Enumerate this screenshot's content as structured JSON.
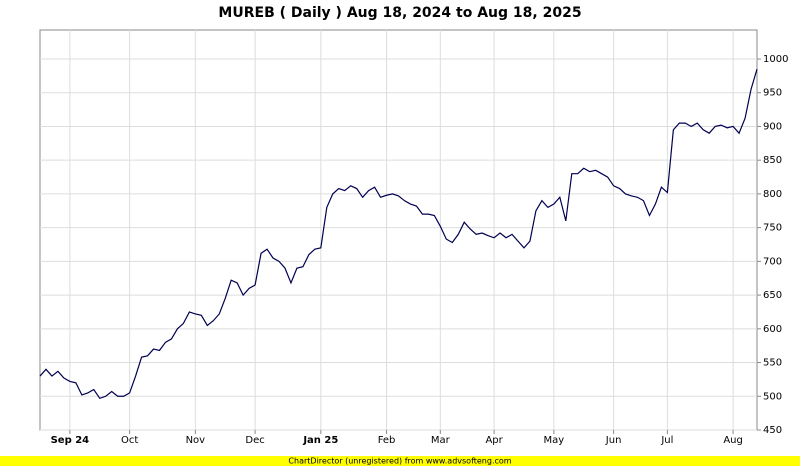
{
  "chart_data": {
    "type": "line",
    "title": "MUREB ( Daily ) Aug 18, 2024 to Aug 18, 2025",
    "footer": "ChartDirector (unregistered) from www.advsofteng.com",
    "color": "#000050",
    "grid": true,
    "ylim": [
      450,
      1043
    ],
    "yticks": [
      450,
      500,
      550,
      600,
      650,
      700,
      750,
      800,
      850,
      900,
      950,
      1000
    ],
    "categories": [
      null,
      null,
      null,
      null,
      null,
      "Sep 24",
      null,
      null,
      null,
      null,
      null,
      null,
      null,
      null,
      null,
      "Oct",
      null,
      null,
      null,
      null,
      null,
      null,
      null,
      null,
      null,
      null,
      "Nov",
      null,
      null,
      null,
      null,
      null,
      null,
      null,
      null,
      null,
      "Dec",
      null,
      null,
      null,
      null,
      null,
      null,
      null,
      null,
      null,
      null,
      "Jan 25",
      null,
      null,
      null,
      null,
      null,
      null,
      null,
      null,
      null,
      null,
      "Feb",
      null,
      null,
      null,
      null,
      null,
      null,
      null,
      null,
      "Mar",
      null,
      null,
      null,
      null,
      null,
      null,
      null,
      null,
      "Apr",
      null,
      null,
      null,
      null,
      null,
      null,
      null,
      null,
      null,
      "May",
      null,
      null,
      null,
      null,
      null,
      null,
      null,
      null,
      null,
      "Jun",
      null,
      null,
      null,
      null,
      null,
      null,
      null,
      null,
      "Jul",
      null,
      null,
      null,
      null,
      null,
      null,
      null,
      null,
      null,
      null,
      "Aug",
      null,
      null,
      null,
      null
    ],
    "values": [
      530,
      540,
      530,
      537,
      527,
      522,
      520,
      502,
      505,
      510,
      497,
      500,
      507,
      500,
      500,
      505,
      530,
      558,
      560,
      570,
      568,
      580,
      585,
      600,
      608,
      625,
      622,
      620,
      605,
      612,
      622,
      645,
      672,
      668,
      650,
      660,
      665,
      712,
      718,
      705,
      700,
      690,
      668,
      690,
      692,
      710,
      718,
      720,
      780,
      800,
      808,
      805,
      812,
      808,
      795,
      805,
      810,
      795,
      798,
      800,
      797,
      790,
      785,
      782,
      770,
      770,
      768,
      752,
      733,
      728,
      740,
      758,
      748,
      740,
      742,
      738,
      735,
      742,
      735,
      740,
      730,
      720,
      730,
      775,
      790,
      780,
      785,
      795,
      760,
      830,
      830,
      838,
      833,
      835,
      830,
      825,
      812,
      808,
      800,
      797,
      795,
      790,
      768,
      785,
      810,
      802,
      895,
      905,
      905,
      900,
      905,
      895,
      890,
      900,
      902,
      898,
      900,
      890,
      912,
      955,
      985
    ]
  }
}
